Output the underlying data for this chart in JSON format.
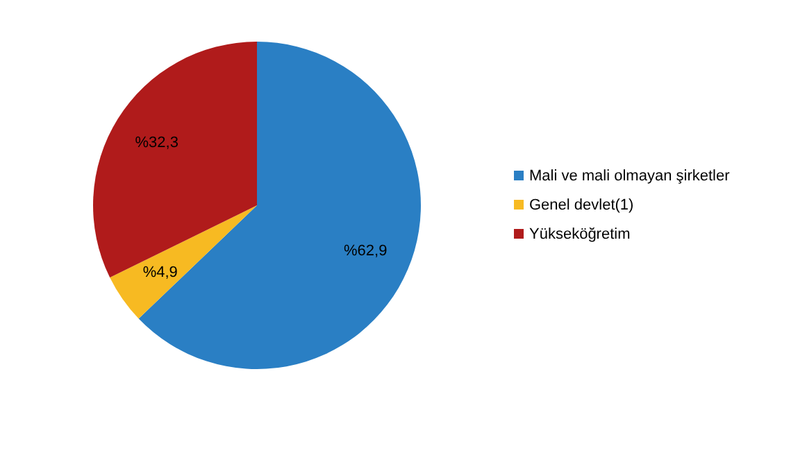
{
  "chart_data": {
    "type": "pie",
    "categories": [
      "Mali ve mali olmayan şirketler",
      "Genel devlet(1)",
      "Yükseköğretim"
    ],
    "values": [
      62.9,
      4.9,
      32.3
    ],
    "colors": [
      "#2a7fc4",
      "#f7ba22",
      "#b01b1b"
    ],
    "value_labels": [
      "%62,9",
      "%4,9",
      "%32,3"
    ],
    "legend": "right"
  }
}
